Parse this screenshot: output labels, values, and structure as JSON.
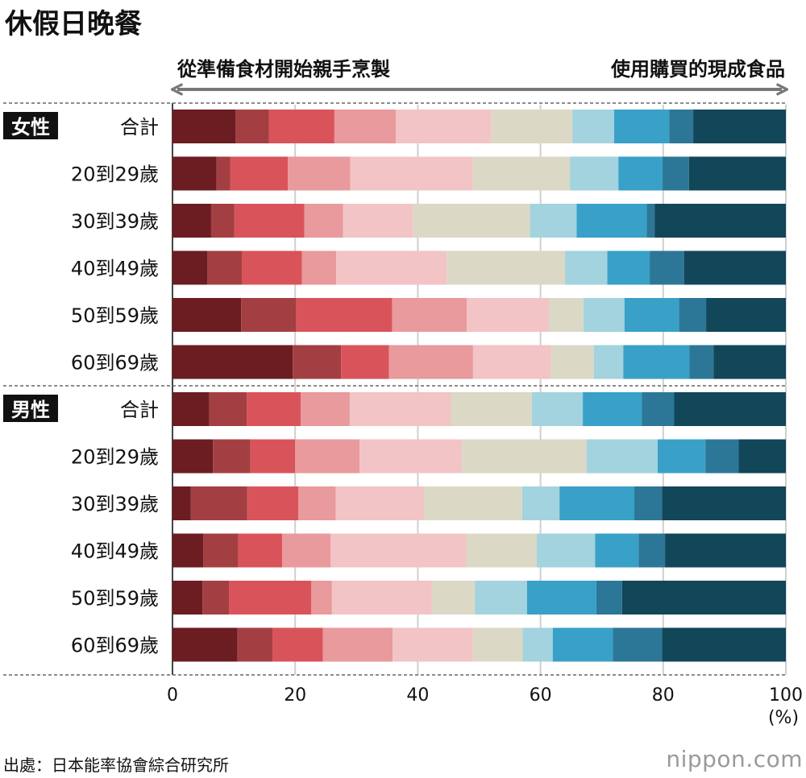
{
  "title": "休假日晚餐",
  "arrow": {
    "left_label": "從準備食材開始親手烹製",
    "right_label": "使用購買的現成食品"
  },
  "source": "出處：日本能率協會綜合研究所",
  "brand": "nippon.com",
  "colors": [
    "#6b1d22",
    "#a33f42",
    "#d9545a",
    "#e89a9c",
    "#f2c4c5",
    "#dcd8c6",
    "#a2d3de",
    "#39a0c8",
    "#2c7797",
    "#124659"
  ],
  "chart_data": {
    "type": "bar",
    "orientation": "horizontal",
    "stacked": true,
    "groups": [
      {
        "label": "女性",
        "rows": [
          {
            "label": "合計",
            "values": [
              10.3,
              5.4,
              10.7,
              10.0,
              15.6,
              13.2,
              6.8,
              9.0,
              3.9,
              15.1
            ]
          },
          {
            "label": "20到29歲",
            "values": [
              7.2,
              2.2,
              9.4,
              10.2,
              20.0,
              15.8,
              7.9,
              7.2,
              4.3,
              15.8
            ]
          },
          {
            "label": "30到39歲",
            "values": [
              6.3,
              3.8,
              11.4,
              6.3,
              11.4,
              19.1,
              7.6,
              11.4,
              1.3,
              21.4
            ]
          },
          {
            "label": "40到49歲",
            "values": [
              5.7,
              5.6,
              9.8,
              5.6,
              18.0,
              19.3,
              6.9,
              6.9,
              5.6,
              16.6
            ]
          },
          {
            "label": "50到59歲",
            "values": [
              11.2,
              9.0,
              15.6,
              12.2,
              13.3,
              5.7,
              6.7,
              8.9,
              4.4,
              13.0
            ]
          },
          {
            "label": "60到69歲",
            "values": [
              19.6,
              7.9,
              7.8,
              13.7,
              12.7,
              7.0,
              4.8,
              10.8,
              3.9,
              11.8
            ]
          }
        ]
      },
      {
        "label": "男性",
        "rows": [
          {
            "label": "合計",
            "values": [
              6.0,
              6.1,
              8.8,
              8.0,
              16.5,
              13.2,
              8.3,
              9.6,
              5.3,
              18.2
            ]
          },
          {
            "label": "20到29歲",
            "values": [
              6.6,
              6.1,
              7.3,
              10.5,
              16.7,
              20.3,
              11.6,
              7.8,
              5.4,
              7.7
            ]
          },
          {
            "label": "30到39歲",
            "values": [
              3.0,
              9.2,
              8.3,
              6.1,
              14.4,
              16.0,
              6.1,
              12.2,
              4.5,
              20.2
            ]
          },
          {
            "label": "40到49歲",
            "values": [
              5.0,
              5.7,
              7.2,
              7.9,
              22.1,
              11.5,
              9.5,
              7.1,
              4.3,
              19.7
            ]
          },
          {
            "label": "50到59歲",
            "values": [
              4.9,
              4.3,
              13.4,
              3.4,
              16.3,
              7.0,
              8.5,
              11.3,
              4.2,
              26.7
            ]
          },
          {
            "label": "60到69歲",
            "values": [
              10.6,
              5.7,
              8.2,
              11.4,
              13.1,
              8.1,
              4.9,
              9.8,
              8.0,
              20.2
            ]
          }
        ]
      }
    ],
    "xlim": [
      0,
      100
    ],
    "xticks": [
      "0",
      "20",
      "40",
      "60",
      "80",
      "100"
    ],
    "xunit": "(%)",
    "grid": true
  }
}
